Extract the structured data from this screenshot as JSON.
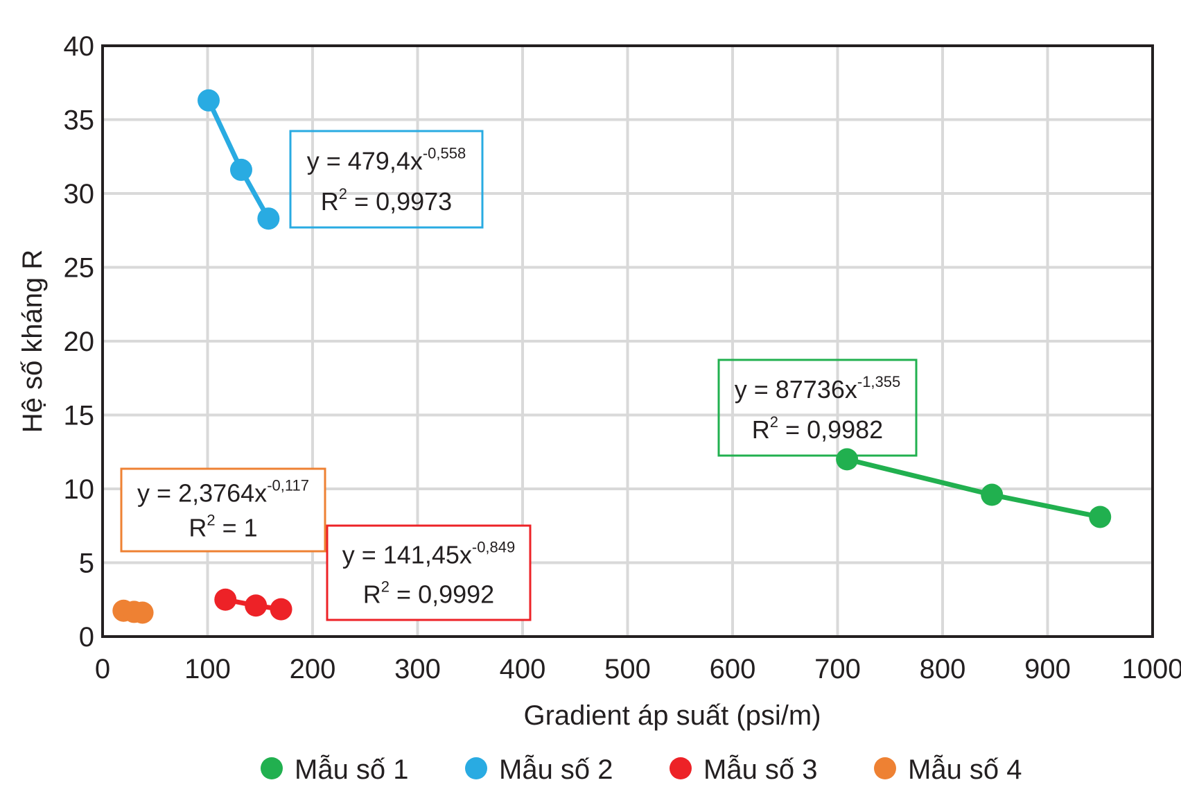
{
  "chart_data": {
    "type": "line",
    "title": "",
    "xlabel": "Gradient áp suất (psi/m)",
    "ylabel": "Hệ số kháng R",
    "xlim": [
      0,
      1000
    ],
    "ylim": [
      0,
      40
    ],
    "xticks": [
      0,
      100,
      200,
      300,
      400,
      500,
      600,
      700,
      800,
      900,
      1000
    ],
    "yticks": [
      0,
      5,
      10,
      15,
      20,
      25,
      30,
      35,
      40
    ],
    "xtick_labels": [
      "0",
      "100",
      "200",
      "300",
      "400",
      "500",
      "600",
      "700",
      "800",
      "900",
      "1000"
    ],
    "ytick_labels": [
      "0",
      "5",
      "10",
      "15",
      "20",
      "25",
      "30",
      "35",
      "40"
    ],
    "grid": true,
    "legend_position": "bottom",
    "series": [
      {
        "name": "Mẫu số 1",
        "color": "#21b04f",
        "x": [
          709,
          847,
          950
        ],
        "y": [
          12.0,
          9.6,
          8.1
        ],
        "trendline": {
          "equation_prefix": "y = 87736x",
          "exponent": "-1,355",
          "r2_prefix": "R",
          "r2_sup": "2",
          "r2_value": " = 0,9982",
          "box_fill": "none"
        }
      },
      {
        "name": "Mẫu số 2",
        "color": "#29abe2",
        "x": [
          101,
          132,
          158
        ],
        "y": [
          36.3,
          31.6,
          28.3
        ],
        "trendline": {
          "equation_prefix": "y = 479,4x",
          "exponent": "-0,558",
          "r2_prefix": "R",
          "r2_sup": "2",
          "r2_value": " = 0,9973",
          "box_fill": "none"
        }
      },
      {
        "name": "Mẫu số 3",
        "color": "#ed2227",
        "x": [
          117,
          146,
          170
        ],
        "y": [
          2.5,
          2.1,
          1.85
        ],
        "trendline": {
          "equation_prefix": "y = 141,45x",
          "exponent": "-0,849",
          "r2_prefix": "R",
          "r2_sup": "2",
          "r2_value": " = 0,9992",
          "box_fill": "#ffffff"
        }
      },
      {
        "name": "Mẫu số 4",
        "color": "#ee8133",
        "x": [
          20,
          30,
          38
        ],
        "y": [
          1.75,
          1.67,
          1.62
        ],
        "trendline": {
          "equation_prefix": "y = 2,3764x",
          "exponent": "-0,117",
          "r2_prefix": "R",
          "r2_sup": "2",
          "r2_value": " = 1",
          "box_fill": "#ffffff"
        }
      }
    ]
  }
}
